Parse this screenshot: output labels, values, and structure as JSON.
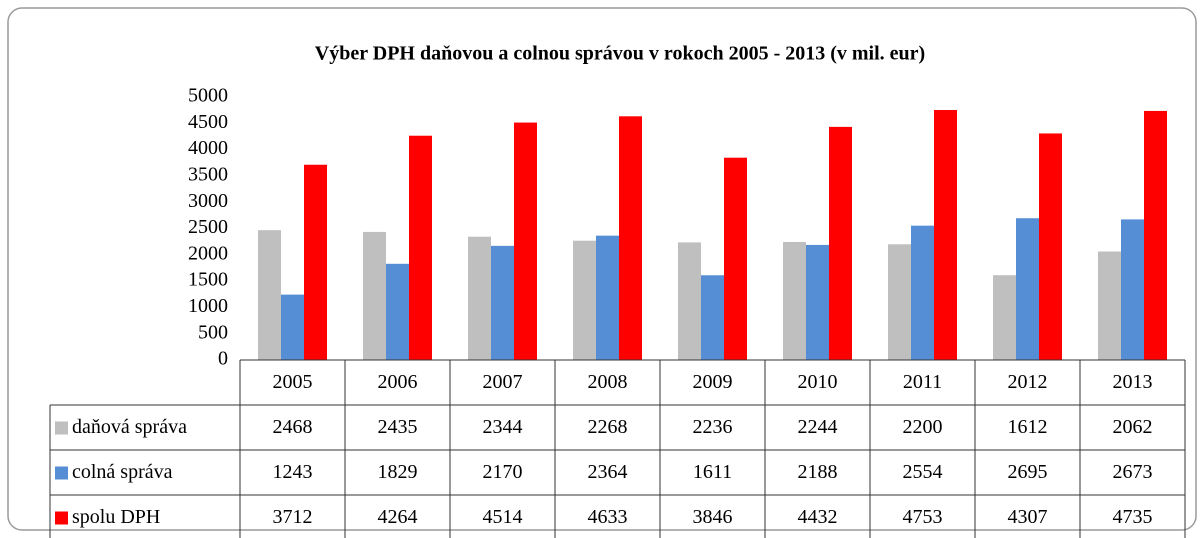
{
  "chart_data": {
    "type": "bar",
    "title": "Výber DPH  daňovou a colnou správou v rokoch 2005 - 2013  (v mil. eur)",
    "categories": [
      "2005",
      "2006",
      "2007",
      "2008",
      "2009",
      "2010",
      "2011",
      "2012",
      "2013"
    ],
    "series": [
      {
        "name": "daňová správa",
        "color": "#bfbfbf",
        "values": [
          2468,
          2435,
          2344,
          2268,
          2236,
          2244,
          2200,
          1612,
          2062
        ]
      },
      {
        "name": "colná správa",
        "color": "#558ed5",
        "values": [
          1243,
          1829,
          2170,
          2364,
          1611,
          2188,
          2554,
          2695,
          2673
        ]
      },
      {
        "name": "spolu DPH",
        "color": "#ff0000",
        "values": [
          3712,
          4264,
          4514,
          4633,
          3846,
          4432,
          4753,
          4307,
          4735
        ]
      }
    ],
    "ylim": [
      0,
      5000
    ],
    "yticks": [
      0,
      500,
      1000,
      1500,
      2000,
      2500,
      3000,
      3500,
      4000,
      4500,
      5000
    ]
  }
}
